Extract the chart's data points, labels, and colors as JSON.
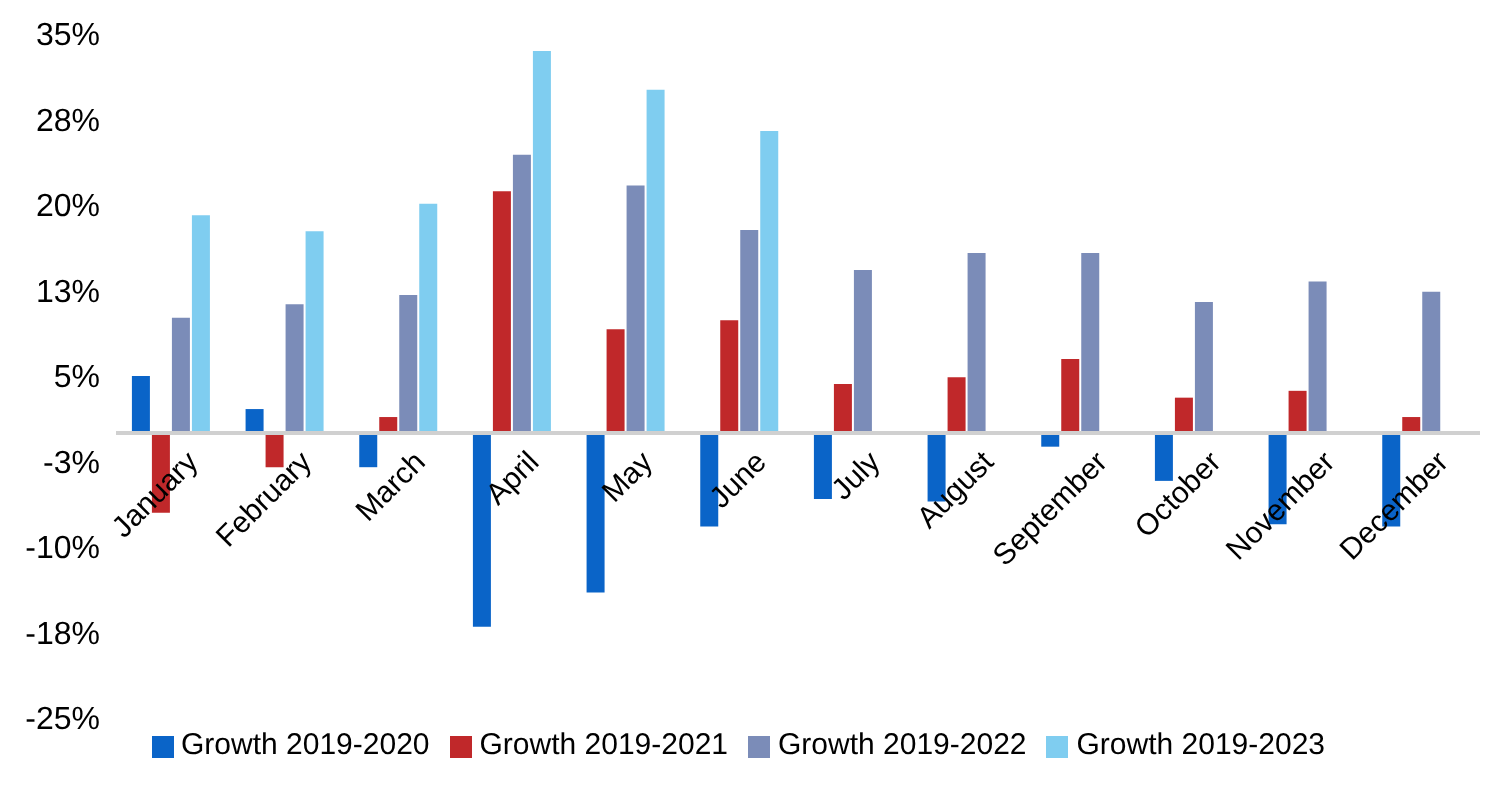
{
  "chart_data": {
    "type": "bar",
    "categories": [
      "January",
      "February",
      "March",
      "April",
      "May",
      "June",
      "July",
      "August",
      "September",
      "October",
      "November",
      "December"
    ],
    "series": [
      {
        "name": "Growth 2019-2020",
        "color": "#0a64c8",
        "values": [
          5,
          2.1,
          -3,
          -17,
          -14,
          -8.2,
          -5.8,
          -6,
          -1.2,
          -4.2,
          -8,
          -8.2
        ]
      },
      {
        "name": "Growth 2019-2021",
        "color": "#c0282a",
        "values": [
          -7,
          -3,
          1.4,
          21.2,
          9.1,
          9.9,
          4.3,
          4.9,
          6.5,
          3.1,
          3.7,
          1.4
        ]
      },
      {
        "name": "Growth 2019-2022",
        "color": "#7b8cb8",
        "values": [
          10.1,
          11.3,
          12.1,
          24.4,
          21.7,
          17.8,
          14.3,
          15.8,
          15.8,
          11.5,
          13.3,
          12.4
        ]
      },
      {
        "name": "Growth 2019-2023",
        "color": "#7fcdf0",
        "values": [
          19.1,
          17.7,
          20.1,
          33.5,
          30.1,
          26.5,
          null,
          null,
          null,
          null,
          null,
          null
        ]
      }
    ],
    "ylim": [
      -25,
      35
    ],
    "yticks": [
      {
        "value": -25,
        "label": "-25%"
      },
      {
        "value": -17.5,
        "label": "-18%"
      },
      {
        "value": -10,
        "label": "-10%"
      },
      {
        "value": -2.5,
        "label": "-3%"
      },
      {
        "value": 5,
        "label": "5%"
      },
      {
        "value": 12.5,
        "label": "13%"
      },
      {
        "value": 20,
        "label": "20%"
      },
      {
        "value": 27.5,
        "label": "28%"
      },
      {
        "value": 35,
        "label": "35%"
      }
    ],
    "grid": false,
    "legend": "bottom"
  }
}
